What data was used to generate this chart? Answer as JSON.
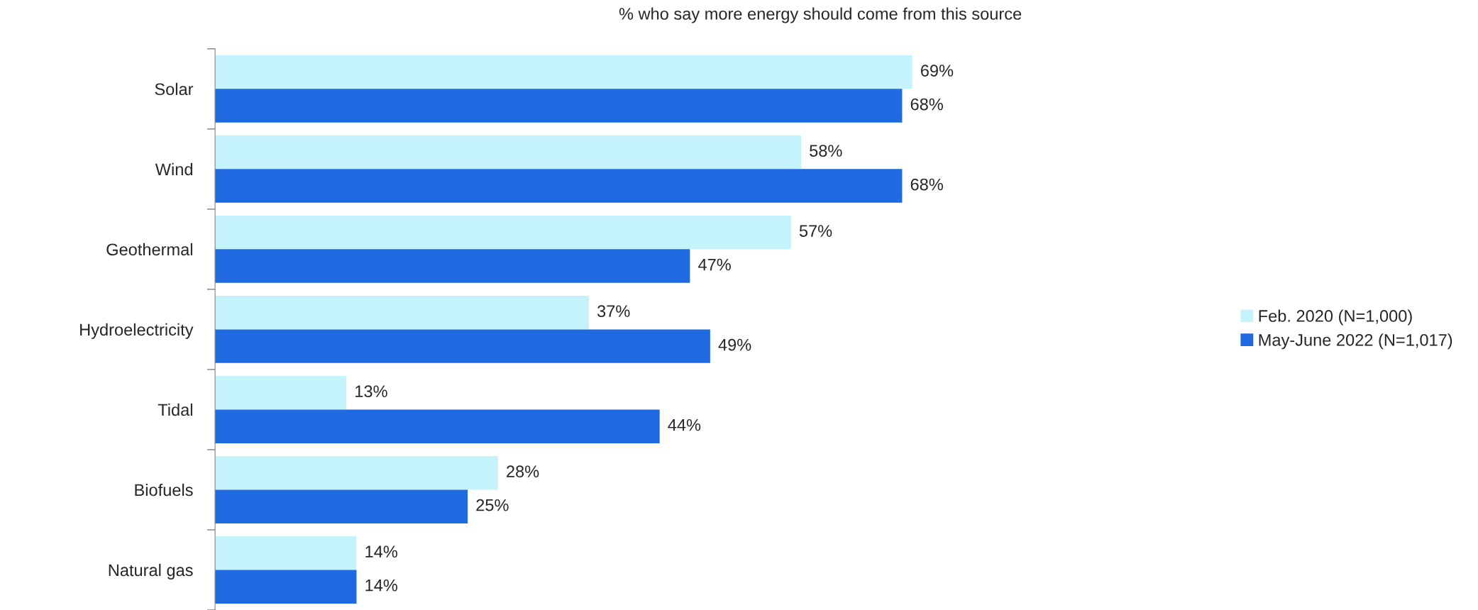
{
  "chart_data": {
    "type": "bar",
    "orientation": "horizontal",
    "title": "% who say more energy should come from this source",
    "categories": [
      "Solar",
      "Wind",
      "Geothermal",
      "Hydroelectricity",
      "Tidal",
      "Biofuels",
      "Natural gas"
    ],
    "series": [
      {
        "name": "Feb. 2020 (N=1,000)",
        "color": "#c5f3fb",
        "values": [
          69,
          58,
          57,
          37,
          13,
          28,
          14
        ],
        "value_labels": [
          "69%",
          "58%",
          "57%",
          "37%",
          "13%",
          "28%",
          "14%"
        ]
      },
      {
        "name": "May-June 2022 (N=1,017)",
        "color": "#1f6ae0",
        "values": [
          68,
          68,
          47,
          49,
          44,
          25,
          14
        ],
        "value_labels": [
          "68%",
          "68%",
          "47%",
          "49%",
          "44%",
          "25%",
          "14%"
        ]
      }
    ],
    "legend": "right",
    "grid": false
  }
}
